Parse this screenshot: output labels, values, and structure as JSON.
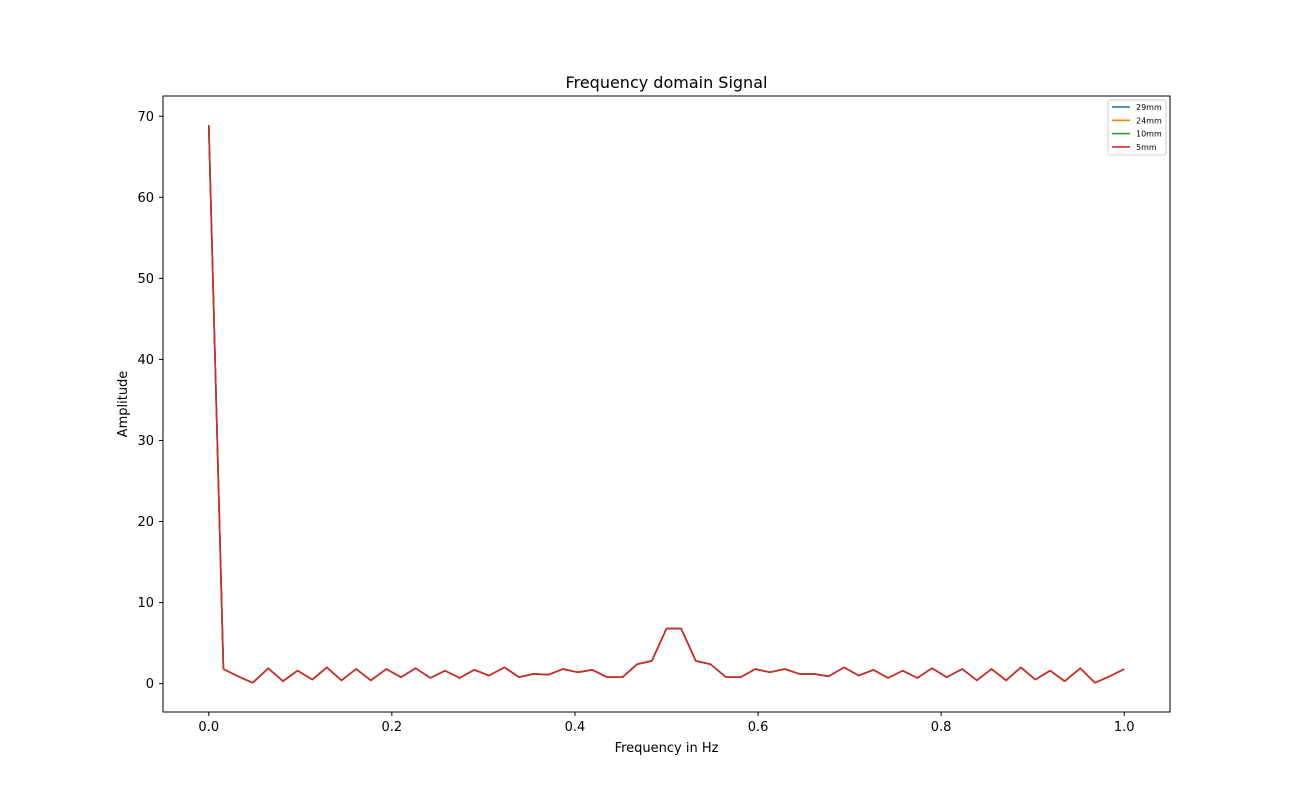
{
  "chart_data": {
    "type": "line",
    "title": "Frequency domain Signal",
    "xlabel": "Frequency in Hz",
    "ylabel": "Amplitude",
    "xlim": [
      -0.05,
      1.05
    ],
    "ylim": [
      -3.5,
      72.5
    ],
    "xticks": [
      0.0,
      0.2,
      0.4,
      0.6,
      0.8,
      1.0
    ],
    "xtick_labels": [
      "0.0",
      "0.2",
      "0.4",
      "0.6",
      "0.8",
      "1.0"
    ],
    "yticks": [
      0,
      10,
      20,
      30,
      40,
      50,
      60,
      70
    ],
    "ytick_labels": [
      "0",
      "10",
      "20",
      "30",
      "40",
      "50",
      "60",
      "70"
    ],
    "grid": false,
    "legend_position": "top-right",
    "x": [
      0.0,
      0.016,
      0.032,
      0.048,
      0.065,
      0.081,
      0.097,
      0.113,
      0.129,
      0.145,
      0.161,
      0.177,
      0.194,
      0.21,
      0.226,
      0.242,
      0.258,
      0.274,
      0.29,
      0.306,
      0.323,
      0.339,
      0.355,
      0.371,
      0.387,
      0.403,
      0.419,
      0.435,
      0.452,
      0.468,
      0.484,
      0.5,
      0.516,
      0.532,
      0.548,
      0.565,
      0.581,
      0.597,
      0.613,
      0.629,
      0.645,
      0.661,
      0.677,
      0.694,
      0.71,
      0.726,
      0.742,
      0.758,
      0.774,
      0.79,
      0.806,
      0.823,
      0.839,
      0.855,
      0.871,
      0.887,
      0.903,
      0.919,
      0.935,
      0.952,
      0.968,
      0.984,
      1.0
    ],
    "series": [
      {
        "name": "29mm",
        "color": "#1f77b4",
        "values": [
          68.9,
          1.8,
          0.9,
          0.1,
          1.9,
          0.3,
          1.6,
          0.5,
          2.0,
          0.4,
          1.8,
          0.4,
          1.8,
          0.8,
          1.9,
          0.7,
          1.6,
          0.7,
          1.7,
          1.0,
          2.0,
          0.8,
          1.2,
          1.1,
          1.8,
          1.4,
          1.7,
          0.8,
          0.8,
          2.4,
          2.8,
          6.8,
          6.8,
          2.8,
          2.4,
          0.8,
          0.8,
          1.8,
          1.4,
          1.8,
          1.2,
          1.2,
          0.9,
          2.0,
          1.0,
          1.7,
          0.7,
          1.6,
          0.7,
          1.9,
          0.8,
          1.8,
          0.4,
          1.8,
          0.4,
          2.0,
          0.5,
          1.6,
          0.3,
          1.9,
          0.1,
          0.9,
          1.8
        ]
      },
      {
        "name": "24mm",
        "color": "#ff7f0e",
        "values": [
          68.9,
          1.8,
          0.9,
          0.1,
          1.9,
          0.3,
          1.6,
          0.5,
          2.0,
          0.4,
          1.8,
          0.4,
          1.8,
          0.8,
          1.9,
          0.7,
          1.6,
          0.7,
          1.7,
          1.0,
          2.0,
          0.8,
          1.2,
          1.1,
          1.8,
          1.4,
          1.7,
          0.8,
          0.8,
          2.4,
          2.8,
          6.8,
          6.8,
          2.8,
          2.4,
          0.8,
          0.8,
          1.8,
          1.4,
          1.8,
          1.2,
          1.2,
          0.9,
          2.0,
          1.0,
          1.7,
          0.7,
          1.6,
          0.7,
          1.9,
          0.8,
          1.8,
          0.4,
          1.8,
          0.4,
          2.0,
          0.5,
          1.6,
          0.3,
          1.9,
          0.1,
          0.9,
          1.8
        ]
      },
      {
        "name": "10mm",
        "color": "#2ca02c",
        "values": [
          68.9,
          1.8,
          0.9,
          0.1,
          1.9,
          0.3,
          1.6,
          0.5,
          2.0,
          0.4,
          1.8,
          0.4,
          1.8,
          0.8,
          1.9,
          0.7,
          1.6,
          0.7,
          1.7,
          1.0,
          2.0,
          0.8,
          1.2,
          1.1,
          1.8,
          1.4,
          1.7,
          0.8,
          0.8,
          2.4,
          2.8,
          6.8,
          6.8,
          2.8,
          2.4,
          0.8,
          0.8,
          1.8,
          1.4,
          1.8,
          1.2,
          1.2,
          0.9,
          2.0,
          1.0,
          1.7,
          0.7,
          1.6,
          0.7,
          1.9,
          0.8,
          1.8,
          0.4,
          1.8,
          0.4,
          2.0,
          0.5,
          1.6,
          0.3,
          1.9,
          0.1,
          0.9,
          1.8
        ]
      },
      {
        "name": "5mm",
        "color": "#d62728",
        "values": [
          68.9,
          1.8,
          0.9,
          0.1,
          1.9,
          0.3,
          1.6,
          0.5,
          2.0,
          0.4,
          1.8,
          0.4,
          1.8,
          0.8,
          1.9,
          0.7,
          1.6,
          0.7,
          1.7,
          1.0,
          2.0,
          0.8,
          1.2,
          1.1,
          1.8,
          1.4,
          1.7,
          0.8,
          0.8,
          2.4,
          2.8,
          6.8,
          6.8,
          2.8,
          2.4,
          0.8,
          0.8,
          1.8,
          1.4,
          1.8,
          1.2,
          1.2,
          0.9,
          2.0,
          1.0,
          1.7,
          0.7,
          1.6,
          0.7,
          1.9,
          0.8,
          1.8,
          0.4,
          1.8,
          0.4,
          2.0,
          0.5,
          1.6,
          0.3,
          1.9,
          0.1,
          0.9,
          1.8
        ]
      }
    ]
  }
}
